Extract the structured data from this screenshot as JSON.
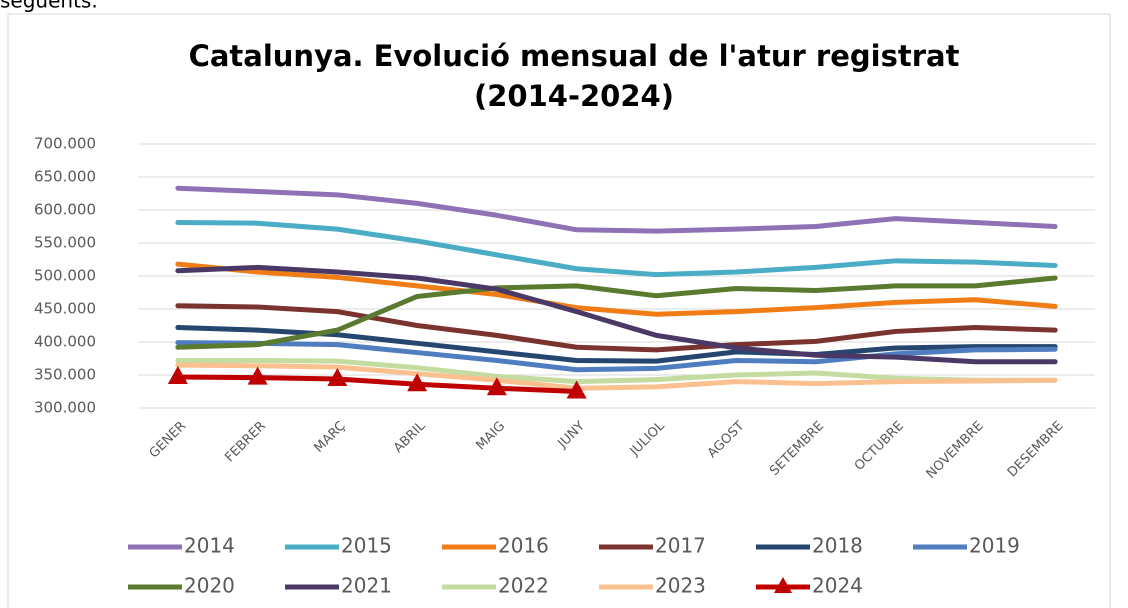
{
  "caption": "següents.",
  "chart_data": {
    "type": "line",
    "title": "Catalunya. Evolució mensual de l'atur registrat",
    "subtitle": "(2014-2024)",
    "categories": [
      "GENER",
      "FEBRER",
      "MARÇ",
      "ABRIL",
      "MAIG",
      "JUNY",
      "JULIOL",
      "AGOST",
      "SETEMBRE",
      "OCTUBRE",
      "NOVEMBRE",
      "DESEMBRE"
    ],
    "ylim": [
      300000,
      700000
    ],
    "yticks": [
      {
        "value": 300000,
        "label": "300.000"
      },
      {
        "value": 350000,
        "label": "350.000"
      },
      {
        "value": 400000,
        "label": "400.000"
      },
      {
        "value": 450000,
        "label": "450.000"
      },
      {
        "value": 500000,
        "label": "500.000"
      },
      {
        "value": 550000,
        "label": "550.000"
      },
      {
        "value": 600000,
        "label": "600.000"
      },
      {
        "value": 650000,
        "label": "650.000"
      },
      {
        "value": 700000,
        "label": "700.000"
      }
    ],
    "grid": true,
    "legend": "bottom",
    "series": [
      {
        "name": "2014",
        "color": "#8e72b5",
        "values": [
          633000,
          628000,
          623000,
          610000,
          592000,
          570000,
          568000,
          571000,
          575000,
          587000,
          581000,
          575000
        ]
      },
      {
        "name": "2015",
        "color": "#4bacc6",
        "values": [
          581000,
          580000,
          571000,
          553000,
          532000,
          511000,
          502000,
          506000,
          513000,
          523000,
          521000,
          516000
        ]
      },
      {
        "name": "2016",
        "color": "#f07c16",
        "values": [
          518000,
          506000,
          498000,
          485000,
          472000,
          452000,
          442000,
          446000,
          452000,
          460000,
          464000,
          454000
        ]
      },
      {
        "name": "2017",
        "color": "#7b3330",
        "values": [
          455000,
          453000,
          446000,
          425000,
          410000,
          392000,
          388000,
          396000,
          401000,
          416000,
          422000,
          418000
        ]
      },
      {
        "name": "2018",
        "color": "#25466e",
        "values": [
          422000,
          418000,
          411000,
          398000,
          385000,
          372000,
          371000,
          385000,
          381000,
          391000,
          393000,
          393000
        ]
      },
      {
        "name": "2019",
        "color": "#4f7dc0",
        "values": [
          399000,
          398000,
          396000,
          384000,
          372000,
          358000,
          360000,
          372000,
          370000,
          382000,
          388000,
          389000
        ]
      },
      {
        "name": "2020",
        "color": "#5a7a30",
        "values": [
          392000,
          396000,
          418000,
          469000,
          482000,
          485000,
          470000,
          481000,
          478000,
          485000,
          485000,
          497000
        ]
      },
      {
        "name": "2021",
        "color": "#4a3866",
        "values": [
          508000,
          513000,
          506000,
          497000,
          480000,
          446000,
          410000,
          391000,
          380000,
          377000,
          370000,
          370000
        ]
      },
      {
        "name": "2022",
        "color": "#c4dca0",
        "values": [
          372000,
          372000,
          371000,
          361000,
          348000,
          340000,
          343000,
          350000,
          353000,
          345000,
          342000,
          342000
        ]
      },
      {
        "name": "2023",
        "color": "#fac090",
        "values": [
          365000,
          364000,
          362000,
          352000,
          342000,
          330000,
          332000,
          340000,
          337000,
          340000,
          341000,
          342000
        ]
      },
      {
        "name": "2024",
        "color": "#c00000",
        "marker": "triangle",
        "values": [
          347000,
          346000,
          344000,
          336000,
          330000,
          325000,
          null,
          null,
          null,
          null,
          null,
          null
        ]
      }
    ]
  }
}
